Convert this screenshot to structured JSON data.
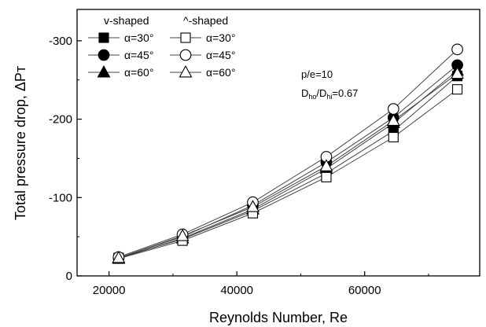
{
  "chart_data": {
    "type": "line",
    "xlabel": "Reynolds Number, Re",
    "ylabel": "Total pressure drop, ΔPᴛ",
    "xlim": [
      15000,
      78000
    ],
    "ylim": [
      0,
      -340
    ],
    "y_inverted": true,
    "x_ticks": [
      {
        "value": 20000,
        "label": "20000"
      },
      {
        "value": 40000,
        "label": "40000"
      },
      {
        "value": 60000,
        "label": "60000"
      }
    ],
    "y_ticks": [
      {
        "value": 0,
        "label": "0"
      },
      {
        "value": -100,
        "label": "-100"
      },
      {
        "value": -200,
        "label": "-200"
      },
      {
        "value": -300,
        "label": "-300"
      }
    ],
    "x": [
      21500,
      31500,
      42500,
      54000,
      64500,
      74500
    ],
    "series": [
      {
        "name": "α=30°",
        "group": "v-shaped",
        "marker": "square",
        "filled": true,
        "values": [
          -23,
          -47,
          -83,
          -131,
          -185,
          -255
        ]
      },
      {
        "name": "α=45°",
        "group": "v-shaped",
        "marker": "circle",
        "filled": true,
        "values": [
          -23,
          -50,
          -90,
          -145,
          -202,
          -269
        ]
      },
      {
        "name": "α=60°",
        "group": "v-shaped",
        "marker": "triangle",
        "filled": true,
        "values": [
          -22,
          -48,
          -85,
          -137,
          -195,
          -262
        ]
      },
      {
        "name": "α=30°",
        "group": "^-shaped",
        "marker": "square",
        "filled": false,
        "values": [
          -22,
          -45,
          -80,
          -126,
          -177,
          -238
        ]
      },
      {
        "name": "α=45°",
        "group": "^-shaped",
        "marker": "circle",
        "filled": false,
        "values": [
          -24,
          -53,
          -94,
          -152,
          -213,
          -289
        ]
      },
      {
        "name": "α=60°",
        "group": "^-shaped",
        "marker": "triangle",
        "filled": false,
        "values": [
          -23,
          -51,
          -88,
          -140,
          -198,
          -258
        ]
      }
    ],
    "legend": {
      "placement": "top-left",
      "group_headers": [
        "v-shaped",
        "^-shaped"
      ]
    },
    "annotations": {
      "pe": "p/e=10",
      "ratio_prefix": "D",
      "ratio_sub1": "ho",
      "ratio_mid": "/D",
      "ratio_sub2": "hi",
      "ratio_value": "=0.67"
    },
    "grid": false
  }
}
